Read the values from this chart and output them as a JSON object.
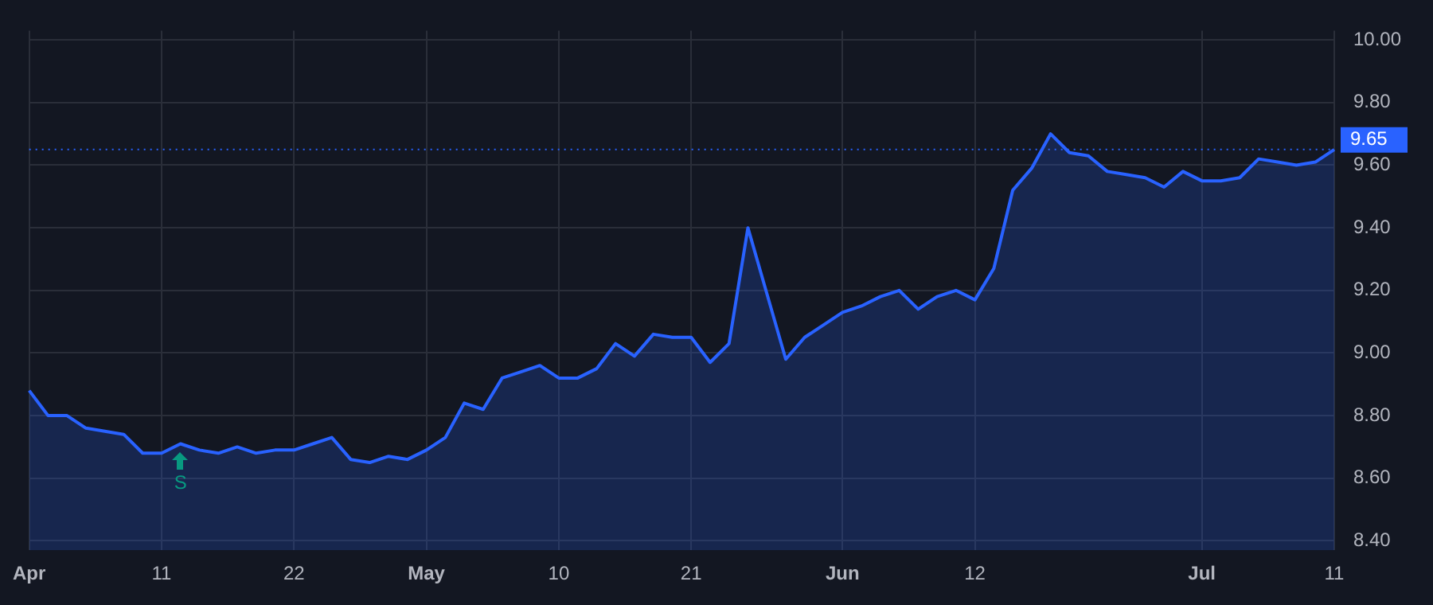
{
  "chart_data": {
    "type": "area",
    "categories": [
      "Apr",
      null,
      null,
      null,
      null,
      null,
      null,
      "11",
      null,
      null,
      null,
      null,
      null,
      null,
      "22",
      null,
      null,
      null,
      null,
      null,
      null,
      "May",
      null,
      null,
      null,
      null,
      null,
      null,
      "10",
      null,
      null,
      null,
      null,
      null,
      null,
      "21",
      null,
      null,
      null,
      null,
      null,
      null,
      null,
      "Jun",
      null,
      null,
      null,
      null,
      null,
      null,
      "12",
      null,
      null,
      null,
      null,
      null,
      null,
      null,
      null,
      null,
      null,
      null,
      "Jul",
      null,
      null,
      null,
      null,
      null,
      null,
      "11"
    ],
    "series": [
      {
        "color": "#2962ff",
        "values": [
          8.88,
          8.8,
          8.8,
          8.76,
          8.75,
          8.74,
          8.68,
          8.68,
          8.71,
          8.69,
          8.68,
          8.7,
          8.68,
          8.69,
          8.69,
          8.71,
          8.73,
          8.66,
          8.65,
          8.67,
          8.66,
          8.69,
          8.73,
          8.84,
          8.82,
          8.92,
          8.94,
          8.96,
          8.92,
          8.92,
          8.95,
          9.03,
          8.99,
          9.06,
          9.05,
          9.05,
          8.97,
          9.03,
          9.4,
          9.19,
          8.98,
          9.05,
          9.09,
          9.13,
          9.15,
          9.18,
          9.2,
          9.14,
          9.18,
          9.2,
          9.17,
          9.27,
          9.52,
          9.59,
          9.7,
          9.64,
          9.63,
          9.58,
          9.57,
          9.56,
          9.53,
          9.58,
          9.55,
          9.55,
          9.56,
          9.62,
          9.61,
          9.6,
          9.61,
          9.65
        ]
      }
    ],
    "ylim": [
      8.37,
      10.03
    ],
    "yticks": [
      {
        "value": 8.4,
        "label": "8.40"
      },
      {
        "value": 8.6,
        "label": "8.60"
      },
      {
        "value": 8.8,
        "label": "8.80"
      },
      {
        "value": 9.0,
        "label": "9.00"
      },
      {
        "value": 9.2,
        "label": "9.20"
      },
      {
        "value": 9.4,
        "label": "9.40"
      },
      {
        "value": 9.6,
        "label": "9.60"
      },
      {
        "value": 9.8,
        "label": "9.80"
      },
      {
        "value": 10.0,
        "label": "10.00"
      }
    ],
    "ref_lines": [
      {
        "axis": "y",
        "value": 9.65,
        "label": "9.65",
        "color": "#2962ff",
        "line_style": "dotted"
      }
    ],
    "annotations": [
      "S"
    ],
    "grid": true,
    "legend": false,
    "marker": "none",
    "line_style": "solid"
  }
}
